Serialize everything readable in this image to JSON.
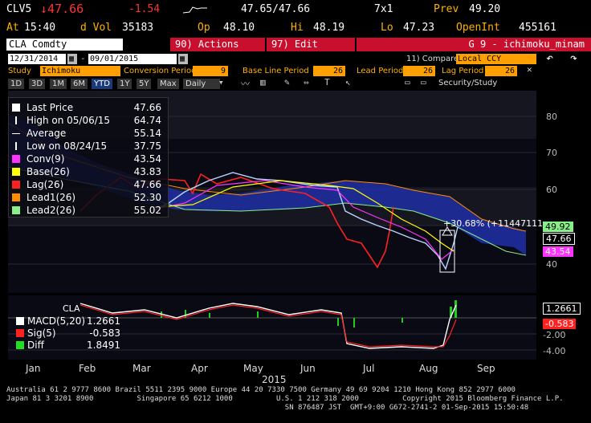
{
  "header": {
    "ticker": "CLV5",
    "arrow_last": "↓47.66",
    "change": "-1.54",
    "bid_ask": "47.65/47.66",
    "size": "7x1",
    "prev_label": "Prev",
    "prev": "49.20",
    "at_label": "At",
    "time": "15:40",
    "dvol_label": "d Vol",
    "dvol": "35183",
    "op_label": "Op",
    "open": "48.10",
    "hi_label": "Hi",
    "high": "48.19",
    "lo_label": "Lo",
    "low": "47.23",
    "oi_label": "OpenInt",
    "open_interest": "455161"
  },
  "toolbar": {
    "security": "CLA Comdty",
    "actions_label": "90) Actions",
    "edit_label": "97) Edit",
    "page_title": "G 9 - ichimoku_minam",
    "start_date": "12/31/2014",
    "end_date": "09/01/2015",
    "compare_label": "11) Compare",
    "compare_value": "Local CCY"
  },
  "study": {
    "study_label": "Study",
    "study_value": "Ichimoku",
    "conv_label": "Conversion Period",
    "conv_value": "9",
    "base_label": "Base Line Period",
    "base_value": "26",
    "lead_label": "Lead Period",
    "lead_value": "26",
    "lag_label": "Lag Period",
    "lag_value": "26"
  },
  "periods": [
    "1D",
    "3D",
    "1M",
    "6M",
    "YTD",
    "1Y",
    "5Y",
    "Max"
  ],
  "period_selected": "YTD",
  "freq_label": "Daily",
  "security_study_label": "Security/Study",
  "legend": [
    {
      "name": "Last Price",
      "value": "47.66",
      "color": "#ffffff"
    },
    {
      "name": "High on 05/06/15",
      "value": "64.74",
      "color": "#ffffff"
    },
    {
      "name": "Average",
      "value": "55.14",
      "color": "#ffffff"
    },
    {
      "name": "Low on 08/24/15",
      "value": "37.75",
      "color": "#ffffff"
    },
    {
      "name": "Conv(9)",
      "value": "43.54",
      "color": "#ff33ff"
    },
    {
      "name": "Base(26)",
      "value": "43.83",
      "color": "#ffff00"
    },
    {
      "name": "Lag(26)",
      "value": "47.66",
      "color": "#ff2020"
    },
    {
      "name": "Lead1(26)",
      "value": "52.30",
      "color": "#ff8c00"
    },
    {
      "name": "Lead2(26)",
      "value": "55.02",
      "color": "#88ee88"
    }
  ],
  "annotation": "+30.68% (+11447111",
  "price_tags": [
    "49.92",
    "47.66",
    "43.54"
  ],
  "macd": {
    "title": "CLA",
    "rows": [
      {
        "name": "MACD(5,20)",
        "value": "1.2661",
        "color": "#ffffff"
      },
      {
        "name": "Sig(5)",
        "value": "-0.583",
        "color": "#ff2020"
      },
      {
        "name": "Diff",
        "value": "1.8491",
        "color": "#22dd22"
      }
    ],
    "tags": [
      "1.2661",
      "-0.583"
    ],
    "axis": [
      "-2.00",
      "-4.00"
    ]
  },
  "y_axis": [
    "80",
    "70",
    "60",
    "50",
    "40"
  ],
  "months": [
    "Jan",
    "Feb",
    "Mar",
    "Apr",
    "May",
    "Jun",
    "Jul",
    "Aug",
    "Sep"
  ],
  "year": "2015",
  "footer": [
    "Australia 61 2 9777 8600 Brazil 5511 2395 9000 Europe 44 20 7330 7500 Germany 49 69 9204 1210 Hong Kong 852 2977 6000",
    "Japan 81 3 3201 8900          Singapore 65 6212 1000          U.S. 1 212 318 2000          Copyright 2015 Bloomberg Finance L.P.",
    "                                                                SN 876487 JST  GMT+9:00 G672-2741-2 01-Sep-2015 15:50:48"
  ]
}
